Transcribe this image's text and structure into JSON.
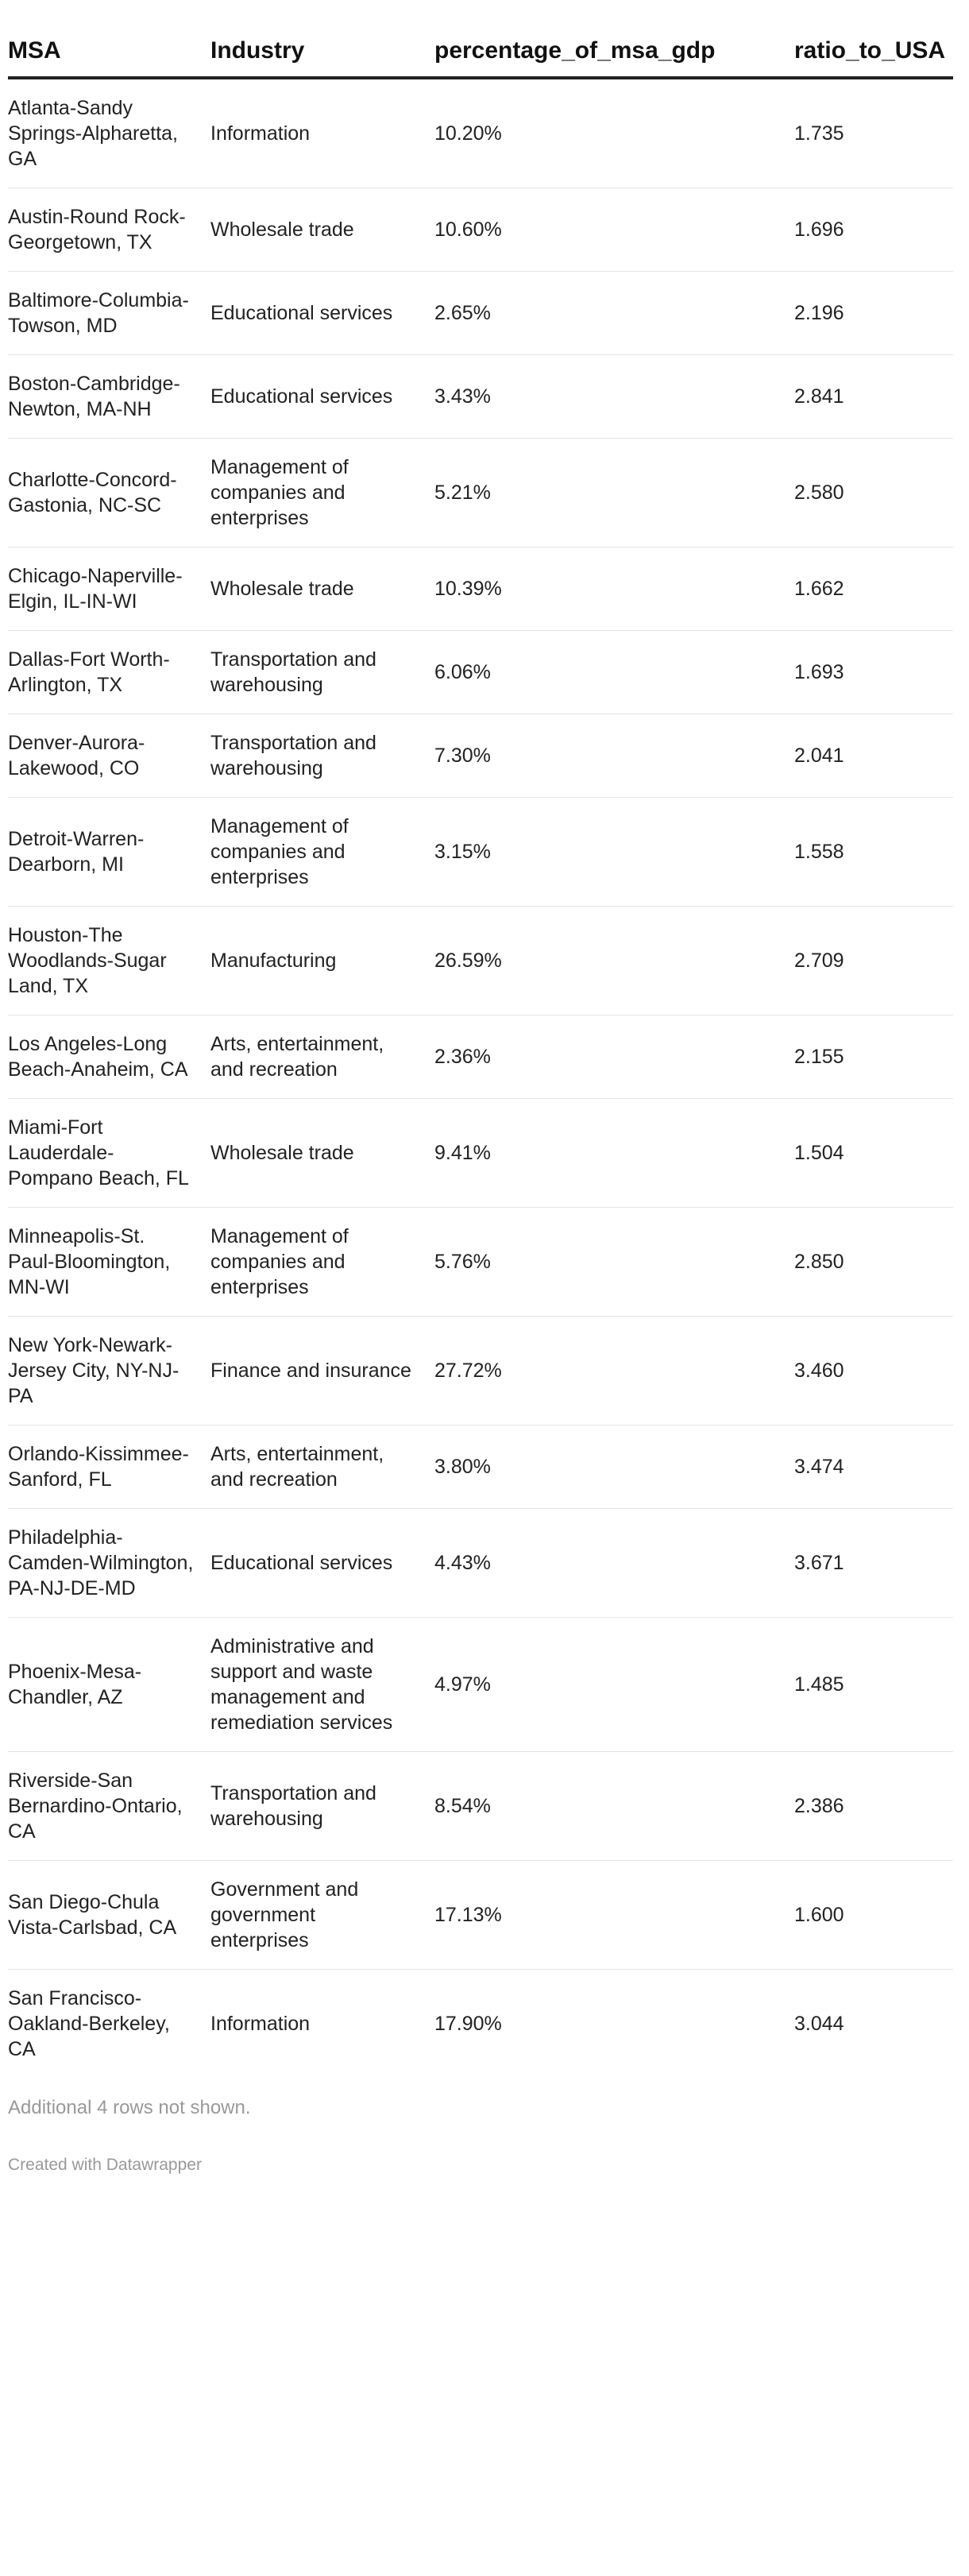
{
  "chart_data": {
    "type": "table",
    "columns": [
      "MSA",
      "Industry",
      "percentage_of_msa_gdp",
      "ratio_to_USA"
    ],
    "rows": [
      [
        "Atlanta-Sandy Springs-Alpharetta, GA",
        "Information",
        "10.20%",
        "1.735"
      ],
      [
        "Austin-Round Rock-Georgetown, TX",
        "Wholesale trade",
        "10.60%",
        "1.696"
      ],
      [
        "Baltimore-Columbia-Towson, MD",
        "Educational services",
        "2.65%",
        "2.196"
      ],
      [
        "Boston-Cambridge-Newton, MA-NH",
        "Educational services",
        "3.43%",
        "2.841"
      ],
      [
        "Charlotte-Concord-Gastonia, NC-SC",
        "Management of companies and enterprises",
        "5.21%",
        "2.580"
      ],
      [
        "Chicago-Naperville-Elgin, IL-IN-WI",
        "Wholesale trade",
        "10.39%",
        "1.662"
      ],
      [
        "Dallas-Fort Worth-Arlington, TX",
        "Transportation and warehousing",
        "6.06%",
        "1.693"
      ],
      [
        "Denver-Aurora-Lakewood, CO",
        "Transportation and warehousing",
        "7.30%",
        "2.041"
      ],
      [
        "Detroit-Warren-Dearborn, MI",
        "Management of companies and enterprises",
        "3.15%",
        "1.558"
      ],
      [
        "Houston-The Woodlands-Sugar Land, TX",
        "Manufacturing",
        "26.59%",
        "2.709"
      ],
      [
        "Los Angeles-Long Beach-Anaheim, CA",
        "Arts, entertainment, and recreation",
        "2.36%",
        "2.155"
      ],
      [
        "Miami-Fort Lauderdale-Pompano Beach, FL",
        "Wholesale trade",
        "9.41%",
        "1.504"
      ],
      [
        "Minneapolis-St. Paul-Bloomington, MN-WI",
        "Management of companies and enterprises",
        "5.76%",
        "2.850"
      ],
      [
        "New York-Newark-Jersey City, NY-NJ-PA",
        "Finance and insurance",
        "27.72%",
        "3.460"
      ],
      [
        "Orlando-Kissimmee-Sanford, FL",
        "Arts, entertainment, and recreation",
        "3.80%",
        "3.474"
      ],
      [
        "Philadelphia-Camden-Wilmington, PA-NJ-DE-MD",
        "Educational services",
        "4.43%",
        "3.671"
      ],
      [
        "Phoenix-Mesa-Chandler, AZ",
        "Administrative and support and waste management and remediation services",
        "4.97%",
        "1.485"
      ],
      [
        "Riverside-San Bernardino-Ontario, CA",
        "Transportation and warehousing",
        "8.54%",
        "2.386"
      ],
      [
        "San Diego-Chula Vista-Carlsbad, CA",
        "Government and government enterprises",
        "17.13%",
        "1.600"
      ],
      [
        "San Francisco-Oakland-Berkeley, CA",
        "Information",
        "17.90%",
        "3.044"
      ]
    ]
  },
  "footer": {
    "note": "Additional 4 rows not shown.",
    "credit": "Created with Datawrapper"
  }
}
